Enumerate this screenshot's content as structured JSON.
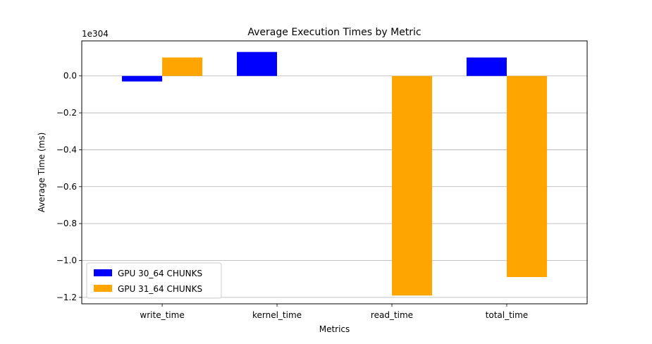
{
  "chart_data": {
    "type": "bar",
    "title": "Average Execution Times by Metric",
    "xlabel": "Metrics",
    "ylabel": "Average Time (ms)",
    "offset_label": "1e304",
    "categories": [
      "write_time",
      "kernel_time",
      "read_time",
      "total_time"
    ],
    "series": [
      {
        "name": "GPU 30_64 CHUNKS",
        "color": "#0000ff",
        "values": [
          -0.03,
          0.13,
          0.0,
          0.1
        ]
      },
      {
        "name": "GPU 31_64 CHUNKS",
        "color": "#ffa500",
        "values": [
          0.1,
          0.0,
          -1.19,
          -1.09
        ]
      }
    ],
    "ylim": [
      -1.235,
      0.19
    ],
    "yticks": [
      0.0,
      -0.2,
      -0.4,
      -0.6,
      -0.8,
      -1.0,
      -1.2
    ],
    "ytick_labels": [
      "0.0",
      "−0.2",
      "−0.4",
      "−0.6",
      "−0.8",
      "−1.0",
      "−1.2"
    ],
    "grid": "y",
    "legend_position": "lower-left"
  }
}
